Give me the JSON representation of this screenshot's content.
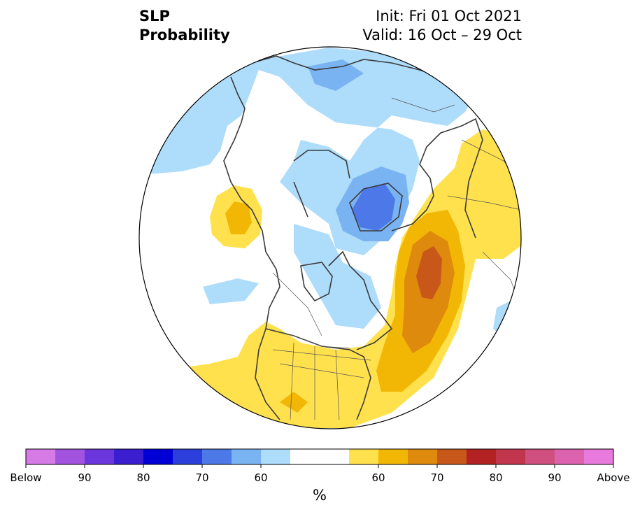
{
  "title": {
    "variable": "SLP",
    "subtitle": "Probability",
    "init": "Init: Fri 01 Oct 2021",
    "valid": "Valid: 16 Oct – 29 Oct"
  },
  "colorbar": {
    "unit": "%",
    "tick_labels": [
      "Below",
      "90",
      "80",
      "70",
      "60",
      "60",
      "70",
      "80",
      "90",
      "Above"
    ],
    "colors": [
      "#d67ae6",
      "#a253e0",
      "#6b37dd",
      "#3b1ecf",
      "#0000d6",
      "#2c3fdc",
      "#4d79e8",
      "#7ab3f2",
      "#aedcfb",
      "#ffffff",
      "#ffffff",
      "#ffe14d",
      "#f2b705",
      "#de8a0c",
      "#c8571a",
      "#b22222",
      "#c2364d",
      "#cf507e",
      "#dc62ae",
      "#e87add"
    ]
  },
  "map": {
    "projection": "north-polar-stereographic",
    "shading_colors": {
      "below_50_60": "#aedcfb",
      "below_60_70": "#7ab3f2",
      "below_70_80": "#4d79e8",
      "above_50_60": "#ffe14d",
      "above_60_70": "#f2b705",
      "above_70_80": "#de8a0c",
      "above_80_90": "#c8571a"
    }
  }
}
